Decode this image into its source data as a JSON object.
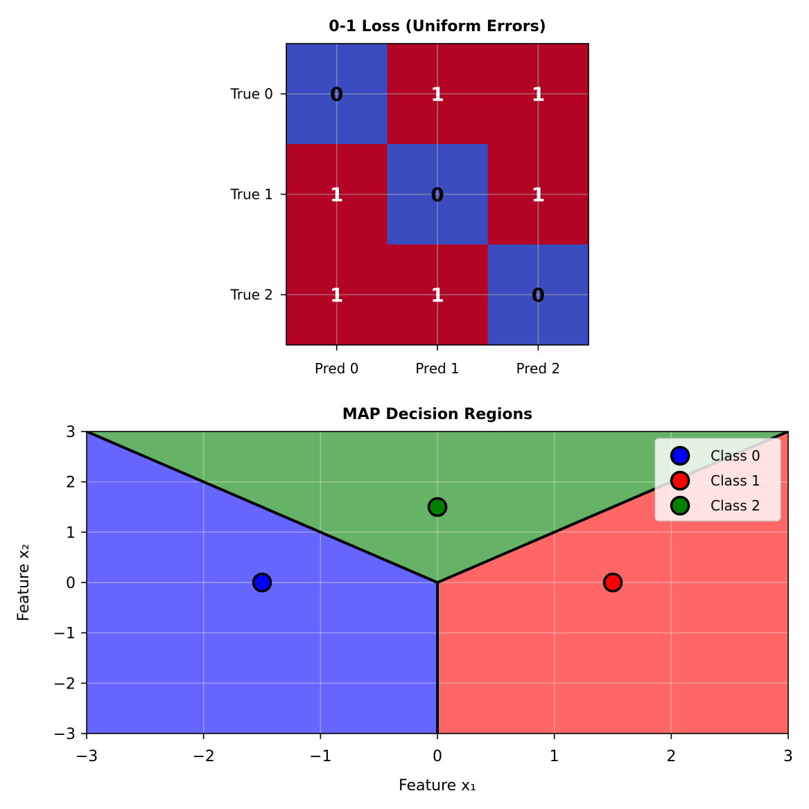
{
  "chart_data": [
    {
      "type": "heatmap",
      "title": "0-1 Loss (Uniform Errors)",
      "row_labels": [
        "True 0",
        "True 1",
        "True 2"
      ],
      "col_labels": [
        "Pred 0",
        "Pred 1",
        "Pred 2"
      ],
      "values": [
        [
          0,
          1,
          1
        ],
        [
          1,
          0,
          1
        ],
        [
          1,
          1,
          0
        ]
      ],
      "colormap": {
        "low": "#3b4cc0",
        "high": "#b40426"
      },
      "text_colors": {
        "low": "#000000",
        "high": "#ffffff"
      },
      "grid": true
    },
    {
      "type": "scatter",
      "title": "MAP Decision Regions",
      "xlabel": "Feature x₁",
      "ylabel": "Feature x₂",
      "xlim": [
        -3,
        3
      ],
      "ylim": [
        -3,
        3
      ],
      "xticks": [
        -3,
        -2,
        -1,
        0,
        1,
        2,
        3
      ],
      "yticks": [
        -3,
        -2,
        -1,
        0,
        1,
        2,
        3
      ],
      "xtick_labels": [
        "−3",
        "−2",
        "−1",
        "0",
        "1",
        "2",
        "3"
      ],
      "ytick_labels": [
        "−3",
        "−2",
        "−1",
        "0",
        "1",
        "2",
        "3"
      ],
      "grid": true,
      "legend_position": "top-right",
      "regions": [
        {
          "class": "Class 0",
          "color": "#6666ff",
          "polygon": [
            [
              -3,
              -3
            ],
            [
              0,
              -3
            ],
            [
              0,
              0
            ],
            [
              -3,
              3
            ]
          ]
        },
        {
          "class": "Class 1",
          "color": "#ff6666",
          "polygon": [
            [
              0,
              -3
            ],
            [
              3,
              -3
            ],
            [
              3,
              3
            ],
            [
              0,
              0
            ]
          ]
        },
        {
          "class": "Class 2",
          "color": "#66b266",
          "polygon": [
            [
              -3,
              3
            ],
            [
              0,
              0
            ],
            [
              3,
              3
            ]
          ]
        }
      ],
      "boundaries": [
        [
          [
            -3,
            3
          ],
          [
            0,
            0
          ]
        ],
        [
          [
            0,
            0
          ],
          [
            3,
            3
          ]
        ],
        [
          [
            0,
            0
          ],
          [
            0,
            -3
          ]
        ]
      ],
      "series": [
        {
          "name": "Class 0",
          "color": "#0000ff",
          "points": [
            [
              -1.5,
              0
            ]
          ]
        },
        {
          "name": "Class 1",
          "color": "#ff0000",
          "points": [
            [
              1.5,
              0
            ]
          ]
        },
        {
          "name": "Class 2",
          "color": "#008000",
          "points": [
            [
              0,
              1.5
            ]
          ]
        }
      ]
    }
  ]
}
